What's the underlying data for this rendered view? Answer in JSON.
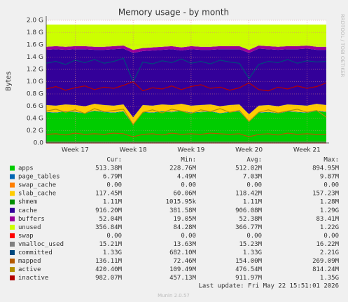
{
  "chart_data": {
    "type": "area",
    "title": "Memory usage - by month",
    "y_label": "Bytes",
    "watermark": "RRDTOOL / TOBI OETIKER",
    "categories": [
      null,
      null,
      null,
      "Week 17",
      null,
      null,
      null,
      null,
      null,
      "Week 18",
      null,
      null,
      null,
      null,
      null,
      "Week 19",
      null,
      null,
      null,
      null,
      null,
      "Week 20",
      null,
      null,
      null,
      null,
      null,
      "Week 21",
      null,
      null
    ],
    "ylim": [
      0,
      2.0
    ],
    "yticks": [
      {
        "value": 0,
        "label": "0.0"
      },
      {
        "value": 0.2,
        "label": "0.2 G"
      },
      {
        "value": 0.4,
        "label": "0.4 G"
      },
      {
        "value": 0.6,
        "label": "0.6 G"
      },
      {
        "value": 0.8,
        "label": "0.8 G"
      },
      {
        "value": 1.0,
        "label": "1.0 G"
      },
      {
        "value": 1.2,
        "label": "1.2 G"
      },
      {
        "value": 1.4,
        "label": "1.4 G"
      },
      {
        "value": 1.6,
        "label": "1.6 G"
      },
      {
        "value": 1.8,
        "label": "1.8 G"
      },
      {
        "value": 2.0,
        "label": "2.0 G"
      }
    ],
    "grid": true,
    "series": [
      {
        "name": "apps",
        "color": "#00cc00",
        "stacked": true,
        "values": [
          0.5,
          0.49,
          0.51,
          0.5,
          0.48,
          0.52,
          0.5,
          0.49,
          0.51,
          0.3,
          0.5,
          0.49,
          0.51,
          0.5,
          0.52,
          0.49,
          0.5,
          0.51,
          0.48,
          0.5,
          0.51,
          0.35,
          0.49,
          0.5,
          0.48,
          0.51,
          0.5,
          0.49,
          0.52,
          0.5
        ]
      },
      {
        "name": "page_tables",
        "color": "#0066b3",
        "stacked": true,
        "values": [
          0.007,
          0.007,
          0.007,
          0.007,
          0.007,
          0.007,
          0.007,
          0.007,
          0.007,
          0.007,
          0.007,
          0.007,
          0.007,
          0.007,
          0.007,
          0.007,
          0.007,
          0.007,
          0.007,
          0.007,
          0.007,
          0.007,
          0.007,
          0.007,
          0.007,
          0.007,
          0.007,
          0.007,
          0.007,
          0.007
        ]
      },
      {
        "name": "swap_cache",
        "color": "#ff8000",
        "stacked": true,
        "values": [
          0,
          0,
          0,
          0,
          0,
          0,
          0,
          0,
          0,
          0,
          0,
          0,
          0,
          0,
          0,
          0,
          0,
          0,
          0,
          0,
          0,
          0,
          0,
          0,
          0,
          0,
          0,
          0,
          0,
          0
        ]
      },
      {
        "name": "slab_cache",
        "color": "#ffcc00",
        "stacked": true,
        "values": [
          0.11,
          0.11,
          0.11,
          0.11,
          0.11,
          0.11,
          0.11,
          0.11,
          0.11,
          0.11,
          0.11,
          0.11,
          0.11,
          0.11,
          0.11,
          0.11,
          0.11,
          0.11,
          0.11,
          0.11,
          0.11,
          0.11,
          0.11,
          0.11,
          0.11,
          0.11,
          0.11,
          0.11,
          0.11,
          0.11
        ]
      },
      {
        "name": "shmem",
        "color": "#008f00",
        "stacked": true,
        "values": [
          0.001,
          0.001,
          0.001,
          0.001,
          0.001,
          0.001,
          0.001,
          0.001,
          0.001,
          0.001,
          0.001,
          0.001,
          0.001,
          0.001,
          0.001,
          0.001,
          0.001,
          0.001,
          0.001,
          0.001,
          0.001,
          0.001,
          0.001,
          0.001,
          0.001,
          0.001,
          0.001,
          0.001,
          0.001,
          0.001
        ]
      },
      {
        "name": "cache",
        "color": "#330099",
        "stacked": true,
        "values": [
          0.9,
          0.92,
          0.89,
          0.91,
          0.93,
          0.88,
          0.9,
          0.92,
          0.91,
          1.05,
          0.88,
          0.9,
          0.89,
          0.91,
          0.87,
          0.92,
          0.9,
          0.89,
          0.93,
          0.91,
          0.9,
          1.0,
          0.93,
          0.91,
          0.92,
          0.9,
          0.91,
          0.93,
          0.88,
          0.9
        ]
      },
      {
        "name": "buffers",
        "color": "#990099",
        "stacked": true,
        "values": [
          0.05,
          0.05,
          0.05,
          0.05,
          0.05,
          0.05,
          0.05,
          0.05,
          0.05,
          0.05,
          0.05,
          0.05,
          0.05,
          0.05,
          0.05,
          0.05,
          0.05,
          0.05,
          0.05,
          0.05,
          0.05,
          0.05,
          0.05,
          0.05,
          0.05,
          0.05,
          0.05,
          0.05,
          0.05,
          0.05
        ]
      },
      {
        "name": "unused",
        "color": "#ccff00",
        "stacked": true,
        "values": [
          0.362,
          0.352,
          0.362,
          0.352,
          0.352,
          0.362,
          0.362,
          0.352,
          0.342,
          0.412,
          0.382,
          0.372,
          0.362,
          0.352,
          0.372,
          0.352,
          0.362,
          0.362,
          0.352,
          0.352,
          0.352,
          0.412,
          0.342,
          0.352,
          0.362,
          0.352,
          0.352,
          0.342,
          0.362,
          0.362
        ]
      },
      {
        "name": "swap",
        "color": "#ff0000",
        "stacked": false,
        "values": [
          0,
          0,
          0,
          0,
          0,
          0,
          0,
          0,
          0,
          0,
          0,
          0,
          0,
          0,
          0,
          0,
          0,
          0,
          0,
          0,
          0,
          0,
          0,
          0,
          0,
          0,
          0,
          0,
          0,
          0
        ]
      },
      {
        "name": "vmalloc_used",
        "color": "#808080",
        "stacked": false,
        "values": [
          0.015,
          0.015,
          0.015,
          0.015,
          0.015,
          0.015,
          0.015,
          0.015,
          0.015,
          0.015,
          0.015,
          0.015,
          0.015,
          0.015,
          0.015,
          0.015,
          0.015,
          0.015,
          0.015,
          0.015,
          0.015,
          0.015,
          0.015,
          0.015,
          0.015,
          0.015,
          0.015,
          0.015,
          0.015,
          0.015
        ]
      },
      {
        "name": "committed",
        "color": "#00487d",
        "stacked": false,
        "values": [
          1.3,
          1.33,
          1.28,
          1.35,
          1.31,
          1.36,
          1.3,
          1.33,
          1.38,
          1.0,
          1.32,
          1.29,
          1.34,
          1.31,
          1.37,
          1.3,
          1.33,
          1.29,
          1.35,
          1.32,
          1.3,
          1.05,
          1.28,
          1.33,
          1.31,
          1.36,
          1.3,
          1.34,
          1.32,
          1.33
        ]
      },
      {
        "name": "mapped",
        "color": "#b35a00",
        "stacked": false,
        "values": [
          0.14,
          0.15,
          0.13,
          0.16,
          0.14,
          0.15,
          0.14,
          0.16,
          0.15,
          0.1,
          0.14,
          0.15,
          0.13,
          0.16,
          0.14,
          0.15,
          0.14,
          0.16,
          0.15,
          0.14,
          0.15,
          0.1,
          0.14,
          0.15,
          0.13,
          0.16,
          0.14,
          0.15,
          0.14,
          0.14
        ]
      },
      {
        "name": "active",
        "color": "#b38f00",
        "stacked": false,
        "values": [
          0.52,
          0.55,
          0.5,
          0.54,
          0.48,
          0.56,
          0.51,
          0.53,
          0.55,
          0.3,
          0.5,
          0.54,
          0.49,
          0.55,
          0.52,
          0.48,
          0.54,
          0.51,
          0.56,
          0.5,
          0.53,
          0.35,
          0.5,
          0.54,
          0.49,
          0.52,
          0.55,
          0.5,
          0.53,
          0.42
        ]
      },
      {
        "name": "inactive",
        "color": "#b30000",
        "stacked": false,
        "values": [
          0.88,
          0.92,
          0.86,
          0.9,
          0.93,
          0.87,
          0.91,
          0.89,
          0.94,
          1.0,
          0.85,
          0.9,
          0.88,
          0.93,
          0.87,
          0.92,
          0.95,
          0.89,
          0.91,
          0.86,
          0.9,
          0.98,
          0.87,
          0.85,
          0.91,
          0.88,
          0.93,
          0.89,
          0.92,
          0.98
        ]
      }
    ],
    "legend_table": {
      "columns": [
        "Cur:",
        "Min:",
        "Avg:",
        "Max:"
      ],
      "rows": [
        [
          "513.38M",
          "228.76M",
          "512.02M",
          "894.95M"
        ],
        [
          "6.79M",
          "4.49M",
          "7.03M",
          "9.87M"
        ],
        [
          "0.00",
          "0.00",
          "0.00",
          "0.00"
        ],
        [
          "117.45M",
          "60.06M",
          "118.42M",
          "157.23M"
        ],
        [
          "1.11M",
          "1015.95k",
          "1.11M",
          "1.28M"
        ],
        [
          "916.20M",
          "381.58M",
          "906.08M",
          "1.29G"
        ],
        [
          "52.04M",
          "19.05M",
          "52.38M",
          "83.41M"
        ],
        [
          "356.84M",
          "84.28M",
          "366.77M",
          "1.22G"
        ],
        [
          "0.00",
          "0.00",
          "0.00",
          "0.00"
        ],
        [
          "15.21M",
          "13.63M",
          "15.23M",
          "16.22M"
        ],
        [
          "1.33G",
          "682.10M",
          "1.33G",
          "2.21G"
        ],
        [
          "136.11M",
          "72.46M",
          "154.00M",
          "269.09M"
        ],
        [
          "420.40M",
          "109.49M",
          "476.54M",
          "814.24M"
        ],
        [
          "982.07M",
          "457.13M",
          "911.97M",
          "1.35G"
        ]
      ]
    },
    "last_update": "Last update: Fri May 22 15:51:01 2026",
    "footer": "Munin 2.0.57"
  }
}
